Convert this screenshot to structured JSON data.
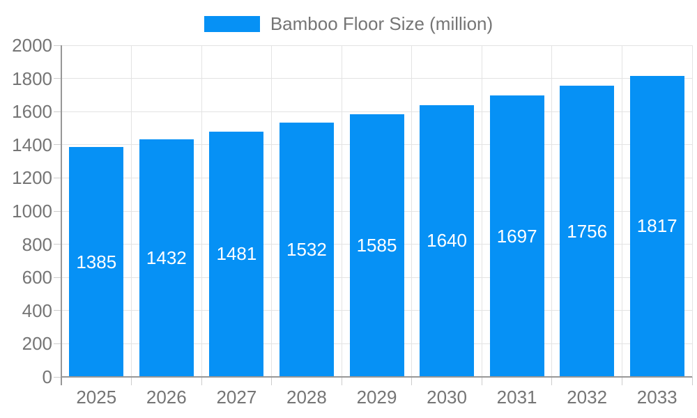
{
  "legend": {
    "label": "Bamboo Floor Size (million)"
  },
  "chart_data": {
    "type": "bar",
    "title": "Bamboo Floor Size (million)",
    "series_name": "Bamboo Floor Size (million)",
    "categories": [
      "2025",
      "2026",
      "2027",
      "2028",
      "2029",
      "2030",
      "2031",
      "2032",
      "2033"
    ],
    "values": [
      1385,
      1432,
      1481,
      1532,
      1585,
      1640,
      1697,
      1756,
      1817
    ],
    "xlabel": "",
    "ylabel": "",
    "ylim": [
      0,
      2000
    ],
    "yticks": [
      0,
      200,
      400,
      600,
      800,
      1000,
      1200,
      1400,
      1600,
      1800,
      2000
    ],
    "grid": true,
    "legend_position": "top-center",
    "value_labels": "inside-center"
  },
  "colors": {
    "bar": "#0691F5",
    "bar_label_text": "#FFFFFF",
    "axis_text": "#757575",
    "legend_text": "#757575",
    "grid_line": "#E3E3E3",
    "tick_line": "#CCCCCC",
    "axis_line": "#979797",
    "background": "#FFFFFF"
  }
}
